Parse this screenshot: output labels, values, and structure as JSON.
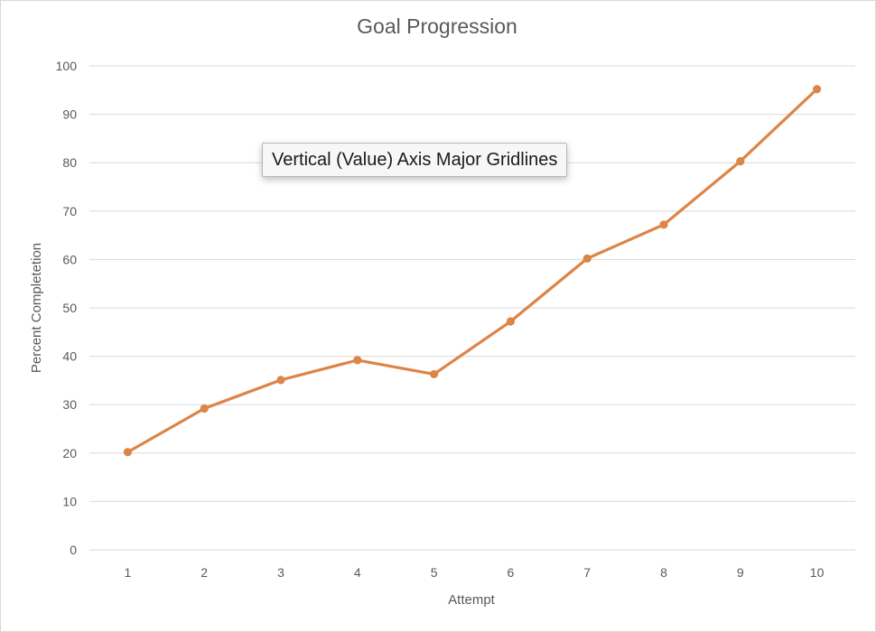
{
  "colors": {
    "series": "#dd8447",
    "gridline": "#d9d9d9",
    "text": "#595959"
  },
  "tooltip": {
    "text": "Vertical (Value) Axis Major Gridlines"
  },
  "chart_data": {
    "type": "line",
    "title": "Goal Progression",
    "xlabel": "Attempt",
    "ylabel": "Percent Completetion",
    "categories": [
      "1",
      "2",
      "3",
      "4",
      "5",
      "6",
      "7",
      "8",
      "9",
      "10"
    ],
    "y_ticks": [
      "0",
      "10",
      "20",
      "30",
      "40",
      "50",
      "60",
      "70",
      "80",
      "90",
      "100"
    ],
    "ylim": [
      0,
      100
    ],
    "grid": true,
    "legend": "none",
    "series": [
      {
        "values": [
          20.2,
          29.2,
          35.1,
          39.2,
          36.3,
          47.2,
          60.2,
          67.2,
          80.3,
          95.2
        ]
      }
    ]
  }
}
